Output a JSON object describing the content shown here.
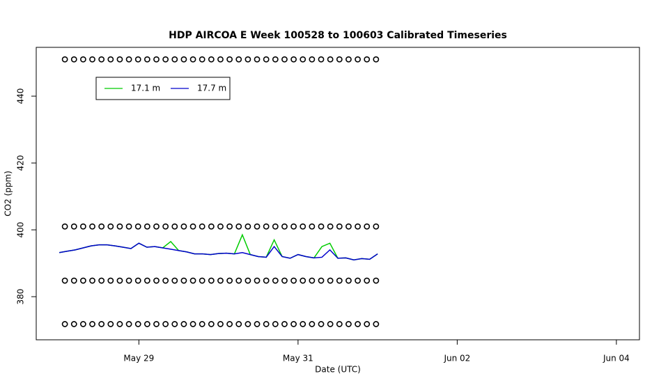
{
  "chart_data": {
    "type": "line",
    "title": "HDP AIRCOA E  Week 100528 to 100603  Calibrated Timeseries",
    "xlabel": "Date (UTC)",
    "ylabel": "CO2 (ppm)",
    "xlim": [
      147.71,
      155.29
    ],
    "ylim": [
      367.1,
      454.6
    ],
    "xticks": [
      {
        "value": 149,
        "label": "May 29"
      },
      {
        "value": 151,
        "label": "May 31"
      },
      {
        "value": 153,
        "label": "Jun 02"
      },
      {
        "value": 155,
        "label": "Jun 04"
      }
    ],
    "yticks": [
      380,
      400,
      420,
      440
    ],
    "legend": "top-left",
    "x": [
      148.0,
      148.1,
      148.2,
      148.3,
      148.4,
      148.5,
      148.6,
      148.7,
      148.8,
      148.9,
      149.0,
      149.1,
      149.2,
      149.3,
      149.4,
      149.5,
      149.6,
      149.7,
      149.8,
      149.9,
      150.0,
      150.1,
      150.2,
      150.3,
      150.4,
      150.5,
      150.6,
      150.7,
      150.8,
      150.9,
      151.0,
      151.1,
      151.2,
      151.3,
      151.4,
      151.5,
      151.6,
      151.7,
      151.8,
      151.9,
      152.0
    ],
    "series": [
      {
        "name": "17.1 m",
        "color": "#00cc00",
        "values": [
          393.2,
          393.6,
          394.0,
          394.6,
          395.2,
          395.5,
          395.5,
          395.2,
          394.8,
          394.4,
          396.0,
          394.8,
          395.0,
          394.6,
          396.5,
          393.8,
          393.4,
          392.8,
          392.8,
          392.6,
          392.9,
          393.0,
          392.8,
          398.5,
          392.6,
          392.0,
          391.8,
          397.0,
          392.0,
          391.5,
          392.6,
          392.0,
          391.6,
          395.0,
          396.0,
          391.5,
          391.6,
          391.0,
          391.4,
          391.2,
          392.8
        ]
      },
      {
        "name": "17.7 m",
        "color": "#0000cc",
        "values": [
          393.2,
          393.6,
          394.0,
          394.6,
          395.2,
          395.5,
          395.5,
          395.2,
          394.8,
          394.4,
          396.0,
          394.8,
          395.0,
          394.6,
          394.2,
          393.8,
          393.4,
          392.8,
          392.8,
          392.6,
          392.9,
          393.0,
          392.8,
          393.2,
          392.6,
          392.0,
          391.8,
          395.0,
          392.0,
          391.5,
          392.6,
          392.0,
          391.6,
          391.8,
          394.0,
          391.5,
          391.6,
          391.0,
          391.4,
          391.2,
          392.8
        ]
      },
      {
        "color": "#000000",
        "marker": "circle",
        "x": [
          148.07,
          148.185,
          148.3,
          148.415,
          148.53,
          148.645,
          148.76,
          148.875,
          148.99,
          149.105,
          149.22,
          149.335,
          149.45,
          149.565,
          149.68,
          149.795,
          149.91,
          150.025,
          150.14,
          150.255,
          150.37,
          150.485,
          150.6,
          150.715,
          150.83,
          150.945,
          151.06,
          151.175,
          151.29,
          151.405,
          151.52,
          151.635,
          151.75,
          151.865,
          151.98
        ],
        "values": [
          451,
          451,
          451,
          451,
          451,
          451,
          451,
          451,
          451,
          451,
          451,
          451,
          451,
          451,
          451,
          451,
          451,
          451,
          451,
          451,
          451,
          451,
          451,
          451,
          451,
          451,
          451,
          451,
          451,
          451,
          451,
          451,
          451,
          451,
          451
        ]
      },
      {
        "color": "#000000",
        "marker": "circle",
        "x": [
          148.07,
          148.185,
          148.3,
          148.415,
          148.53,
          148.645,
          148.76,
          148.875,
          148.99,
          149.105,
          149.22,
          149.335,
          149.45,
          149.565,
          149.68,
          149.795,
          149.91,
          150.025,
          150.14,
          150.255,
          150.37,
          150.485,
          150.6,
          150.715,
          150.83,
          150.945,
          151.06,
          151.175,
          151.29,
          151.405,
          151.52,
          151.635,
          151.75,
          151.865,
          151.98
        ],
        "values": [
          401,
          401,
          401,
          401,
          401,
          401,
          401,
          401,
          401,
          401,
          401,
          401,
          401,
          401,
          401,
          401,
          401,
          401,
          401,
          401,
          401,
          401,
          401,
          401,
          401,
          401,
          401,
          401,
          401,
          401,
          401,
          401,
          401,
          401,
          401
        ]
      },
      {
        "color": "#000000",
        "marker": "circle",
        "x": [
          148.07,
          148.185,
          148.3,
          148.415,
          148.53,
          148.645,
          148.76,
          148.875,
          148.99,
          149.105,
          149.22,
          149.335,
          149.45,
          149.565,
          149.68,
          149.795,
          149.91,
          150.025,
          150.14,
          150.255,
          150.37,
          150.485,
          150.6,
          150.715,
          150.83,
          150.945,
          151.06,
          151.175,
          151.29,
          151.405,
          151.52,
          151.635,
          151.75,
          151.865,
          151.98
        ],
        "values": [
          384.8,
          384.8,
          384.8,
          384.8,
          384.8,
          384.8,
          384.8,
          384.8,
          384.8,
          384.8,
          384.8,
          384.8,
          384.8,
          384.8,
          384.8,
          384.8,
          384.8,
          384.8,
          384.8,
          384.8,
          384.8,
          384.8,
          384.8,
          384.8,
          384.8,
          384.8,
          384.8,
          384.8,
          384.8,
          384.8,
          384.8,
          384.8,
          384.8,
          384.8,
          384.8
        ]
      },
      {
        "color": "#000000",
        "marker": "circle",
        "x": [
          148.07,
          148.185,
          148.3,
          148.415,
          148.53,
          148.645,
          148.76,
          148.875,
          148.99,
          149.105,
          149.22,
          149.335,
          149.45,
          149.565,
          149.68,
          149.795,
          149.91,
          150.025,
          150.14,
          150.255,
          150.37,
          150.485,
          150.6,
          150.715,
          150.83,
          150.945,
          151.06,
          151.175,
          151.29,
          151.405,
          151.52,
          151.635,
          151.75,
          151.865,
          151.98
        ],
        "values": [
          371.8,
          371.8,
          371.8,
          371.8,
          371.8,
          371.8,
          371.8,
          371.8,
          371.8,
          371.8,
          371.8,
          371.8,
          371.8,
          371.8,
          371.8,
          371.8,
          371.8,
          371.8,
          371.8,
          371.8,
          371.8,
          371.8,
          371.8,
          371.8,
          371.8,
          371.8,
          371.8,
          371.8,
          371.8,
          371.8,
          371.8,
          371.8,
          371.8,
          371.8,
          371.8
        ]
      }
    ]
  }
}
